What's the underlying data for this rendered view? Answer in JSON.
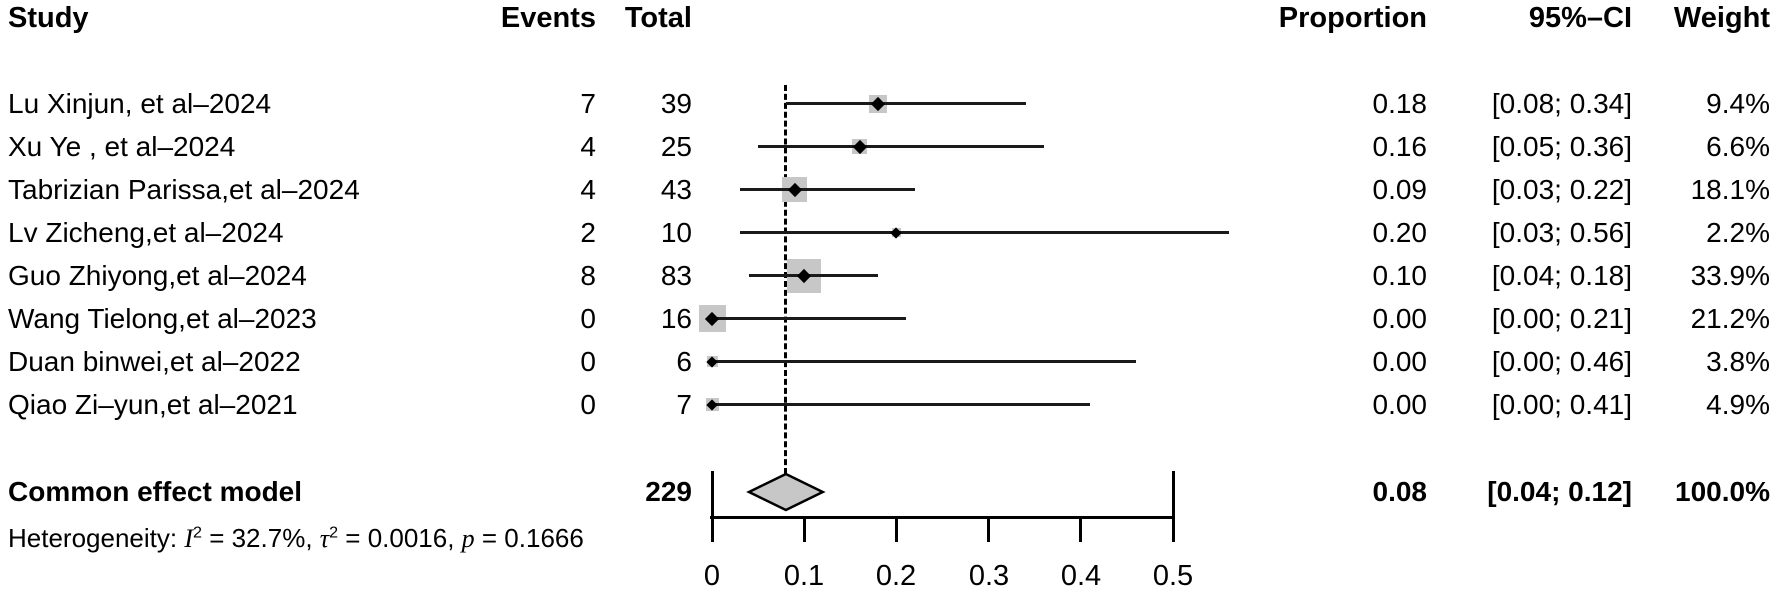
{
  "columns": {
    "study": "Study",
    "events": "Events",
    "total": "Total",
    "proportion": "Proportion",
    "ci": "95%–CI",
    "weight": "Weight"
  },
  "chart_data": {
    "type": "forest",
    "x_axis": {
      "min": 0,
      "max": 0.5,
      "tick_values": [
        0,
        0.1,
        0.2,
        0.3,
        0.4,
        0.5
      ],
      "tick_labels": [
        "0",
        "0.1",
        "0.2",
        "0.3",
        "0.4",
        "0.5"
      ]
    },
    "reference_line": 0.08,
    "marker_color": "#c7c7c7",
    "line_color": "#000000",
    "studies": [
      {
        "name": "Lu Xinjun, et al–2024",
        "events": "7",
        "total": "39",
        "proportion": 0.18,
        "ci_lower": 0.08,
        "ci_upper": 0.34,
        "weight": 9.4,
        "proportion_label": "0.18",
        "ci_label": "[0.08; 0.34]",
        "weight_label": "9.4%"
      },
      {
        "name": "Xu Ye , et al–2024",
        "events": "4",
        "total": "25",
        "proportion": 0.16,
        "ci_lower": 0.05,
        "ci_upper": 0.36,
        "weight": 6.6,
        "proportion_label": "0.16",
        "ci_label": "[0.05; 0.36]",
        "weight_label": "6.6%"
      },
      {
        "name": "Tabrizian Parissa,et al–2024",
        "events": "4",
        "total": "43",
        "proportion": 0.09,
        "ci_lower": 0.03,
        "ci_upper": 0.22,
        "weight": 18.1,
        "proportion_label": "0.09",
        "ci_label": "[0.03; 0.22]",
        "weight_label": "18.1%"
      },
      {
        "name": "Lv Zicheng,et al–2024",
        "events": "2",
        "total": "10",
        "proportion": 0.2,
        "ci_lower": 0.03,
        "ci_upper": 0.56,
        "weight": 2.2,
        "proportion_label": "0.20",
        "ci_label": "[0.03; 0.56]",
        "weight_label": "2.2%"
      },
      {
        "name": "Guo Zhiyong,et al–2024",
        "events": "8",
        "total": "83",
        "proportion": 0.1,
        "ci_lower": 0.04,
        "ci_upper": 0.18,
        "weight": 33.9,
        "proportion_label": "0.10",
        "ci_label": "[0.04; 0.18]",
        "weight_label": "33.9%"
      },
      {
        "name": "Wang Tielong,et al–2023",
        "events": "0",
        "total": "16",
        "proportion": 0.0,
        "ci_lower": 0.0,
        "ci_upper": 0.21,
        "weight": 21.2,
        "proportion_label": "0.00",
        "ci_label": "[0.00; 0.21]",
        "weight_label": "21.2%"
      },
      {
        "name": "Duan binwei,et al–2022",
        "events": "0",
        "total": "6",
        "proportion": 0.0,
        "ci_lower": 0.0,
        "ci_upper": 0.46,
        "weight": 3.8,
        "proportion_label": "0.00",
        "ci_label": "[0.00; 0.46]",
        "weight_label": "3.8%"
      },
      {
        "name": "Qiao Zi–yun,et al–2021",
        "events": "0",
        "total": "7",
        "proportion": 0.0,
        "ci_lower": 0.0,
        "ci_upper": 0.41,
        "weight": 4.9,
        "proportion_label": "0.00",
        "ci_label": "[0.00; 0.41]",
        "weight_label": "4.9%"
      }
    ],
    "summary": {
      "label": "Common effect model",
      "total": "229",
      "proportion": 0.08,
      "ci_lower": 0.04,
      "ci_upper": 0.12,
      "proportion_label": "0.08",
      "ci_label": "[0.04; 0.12]",
      "weight_label": "100.0%"
    },
    "heterogeneity": {
      "prefix": "Heterogeneity: ",
      "i_symbol": "I",
      "i_exp": "2",
      "i_value": " = 32.7%, ",
      "tau_symbol": "τ",
      "tau_exp": "2",
      "tau_value": " = 0.0016, ",
      "p_symbol": "p",
      "p_value": " = 0.1666"
    }
  }
}
